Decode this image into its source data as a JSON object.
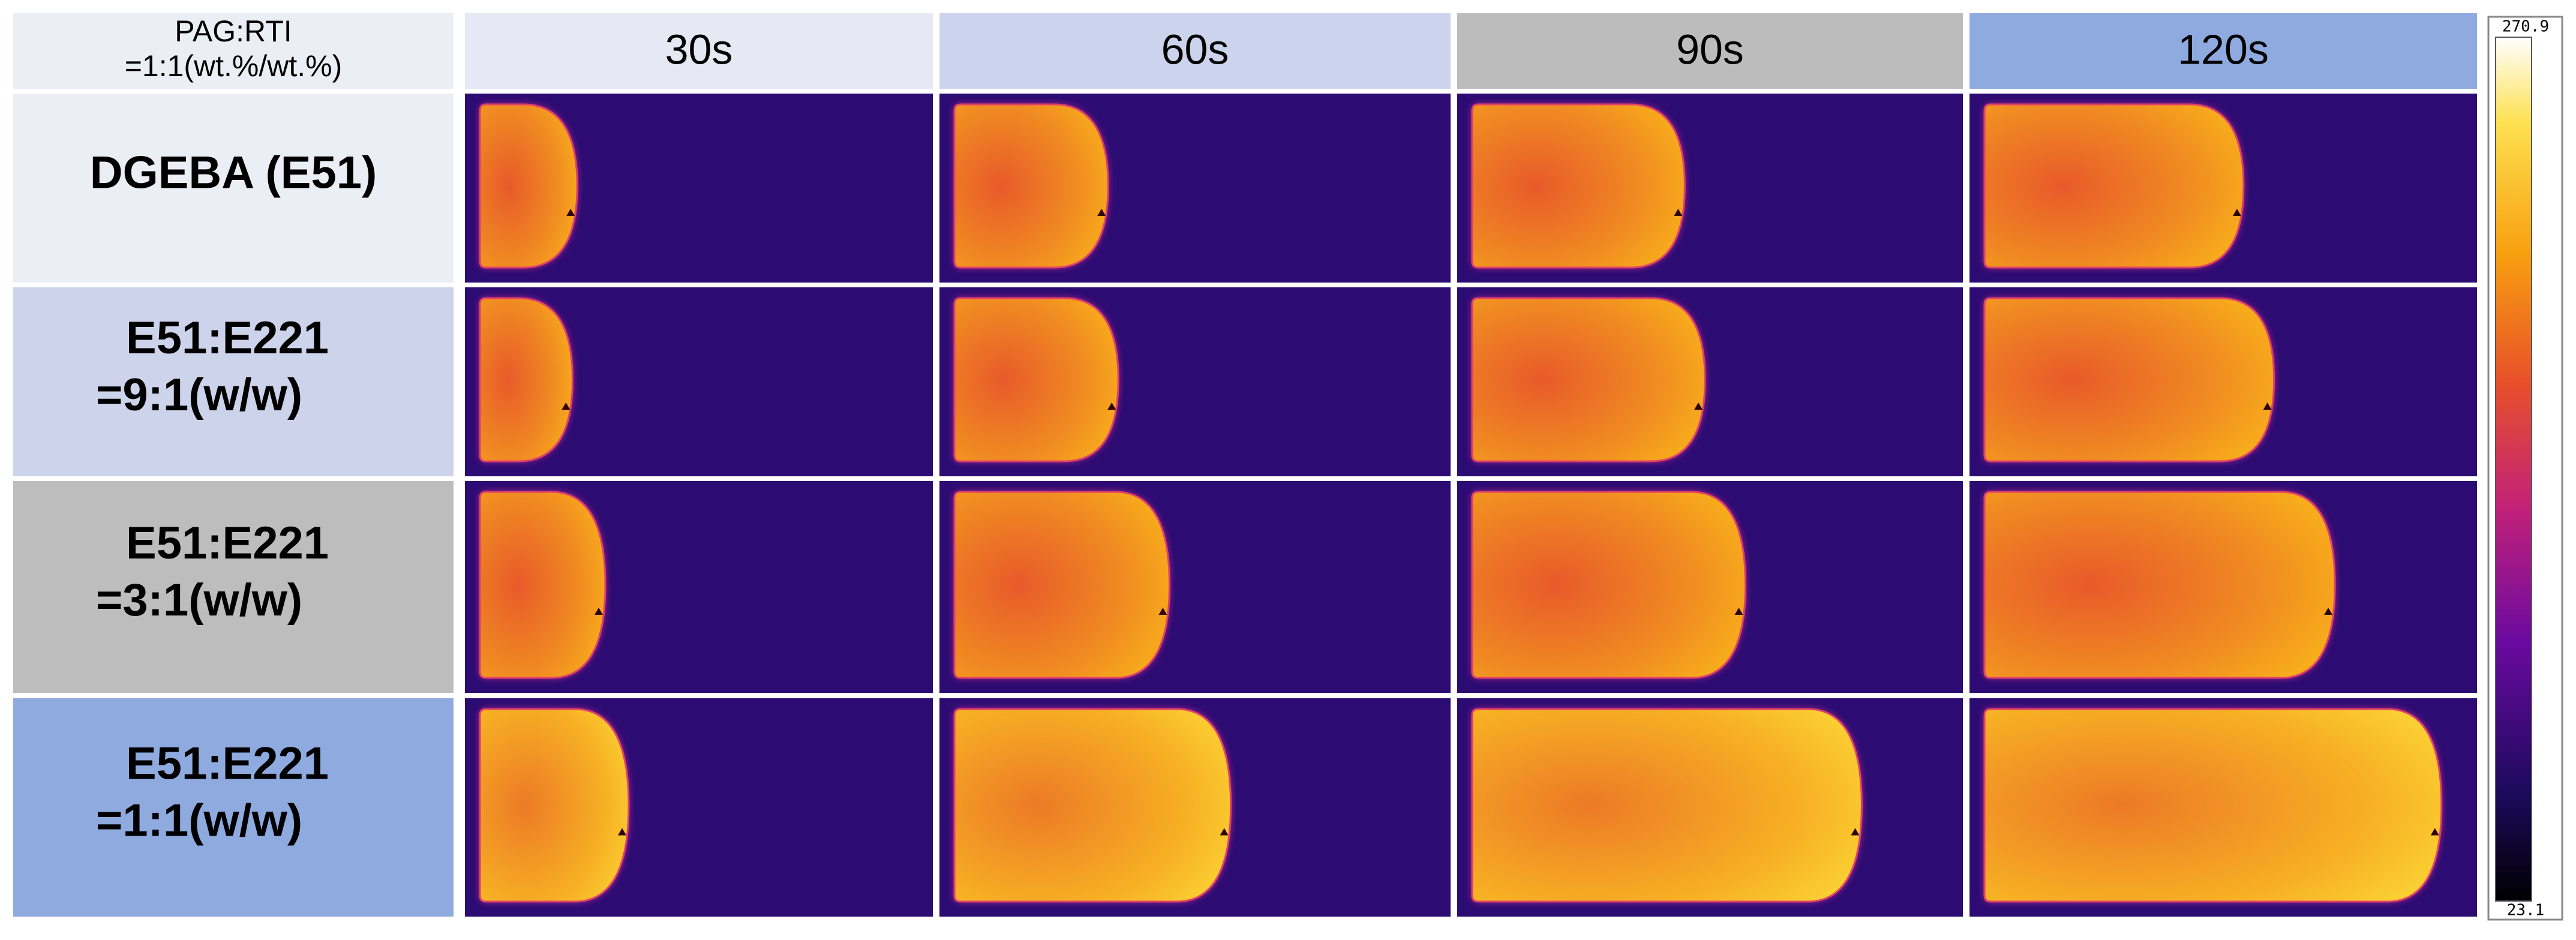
{
  "header": {
    "corner": [
      "PAG:RTI",
      "=1:1(wt.%/wt.%)"
    ],
    "columns": [
      "30s",
      "60s",
      "90s",
      "120s"
    ]
  },
  "rows": [
    {
      "label": [
        "DGEBA (E51)"
      ]
    },
    {
      "label": [
        "E51:E221",
        "=9:1(w/w)"
      ]
    },
    {
      "label": [
        "E51:E221",
        "=3:1(w/w)"
      ]
    },
    {
      "label": [
        "E51:E221",
        "=1:1(w/w)"
      ]
    }
  ],
  "colorbar": {
    "max": 270.9,
    "min": 23.1
  }
}
